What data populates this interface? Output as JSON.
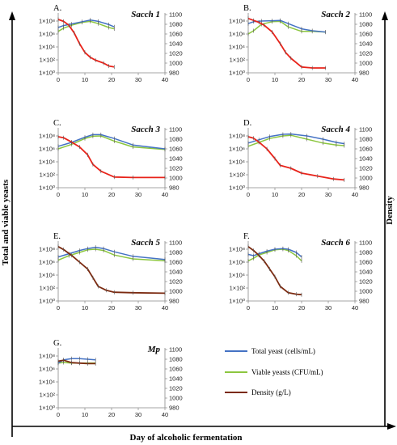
{
  "figure": {
    "y_axis_label": "Total and viable yeasts",
    "x_axis_label": "Day of alcoholic fermentation",
    "right_axis_label": "Density"
  },
  "legend": [
    {
      "label": "Total yeast (cells/mL)",
      "color": "#4472C4"
    },
    {
      "label": "Viable yeasts (CFU/mL)",
      "color": "#8CC63F"
    },
    {
      "label": "Density (g/L)",
      "color": "#7B2A10"
    }
  ],
  "colors": {
    "total": "#4472C4",
    "viable": "#8CC63F",
    "density_red": "#E8231A",
    "density_brown": "#7B2A10",
    "axis": "#888888"
  },
  "left_tick_labels": [
    "1×10⁰",
    "1×10²",
    "1×10⁴",
    "1×10⁶",
    "1×10⁸"
  ],
  "right_tick_labels": [
    "980",
    "1000",
    "1020",
    "1040",
    "1060",
    "1080",
    "1100"
  ],
  "x_tick_labels": [
    "0",
    "10",
    "20",
    "30",
    "40"
  ],
  "chart_data": [
    {
      "type": "line",
      "letter": "A.",
      "title": "Sacch 1",
      "xlim": [
        0,
        40
      ],
      "ylim_left_log10": [
        0,
        9
      ],
      "ylim_right": [
        980,
        1100
      ],
      "density_color": "red",
      "series": [
        {
          "name": "Total yeast (cells/mL)",
          "axis": "left",
          "x": [
            0,
            2,
            5,
            9,
            12,
            15,
            19,
            21
          ],
          "log10_values": [
            7.0,
            7.3,
            7.55,
            7.9,
            8.15,
            7.95,
            7.45,
            7.1
          ]
        },
        {
          "name": "Viable yeasts (CFU/mL)",
          "axis": "left",
          "x": [
            0,
            2,
            5,
            9,
            12,
            15,
            19,
            21
          ],
          "log10_values": [
            6.4,
            6.9,
            7.35,
            7.8,
            7.95,
            7.6,
            7.0,
            6.8
          ]
        },
        {
          "name": "Density (g/L)",
          "axis": "right",
          "x": [
            0,
            2,
            4,
            6,
            8,
            10,
            12,
            14,
            17,
            19,
            21
          ],
          "values": [
            1090,
            1086,
            1078,
            1062,
            1040,
            1022,
            1012,
            1006,
            1000,
            994,
            992
          ]
        }
      ]
    },
    {
      "type": "line",
      "letter": "B.",
      "title": "Sacch 2",
      "xlim": [
        0,
        40
      ],
      "ylim_left_log10": [
        0,
        9
      ],
      "ylim_right": [
        980,
        1100
      ],
      "density_color": "red",
      "series": [
        {
          "name": "Total yeast (cells/mL)",
          "axis": "left",
          "x": [
            0,
            2,
            5,
            9,
            12,
            15,
            20,
            24,
            29
          ],
          "log10_values": [
            7.6,
            7.9,
            8.0,
            8.05,
            8.1,
            7.6,
            6.8,
            6.5,
            6.3
          ]
        },
        {
          "name": "Viable yeasts (CFU/mL)",
          "axis": "left",
          "x": [
            0,
            2,
            5,
            9,
            12,
            15,
            20,
            24,
            29
          ],
          "log10_values": [
            6.0,
            6.5,
            7.5,
            7.9,
            7.95,
            7.1,
            6.4,
            6.4,
            6.3
          ]
        },
        {
          "name": "Density (g/L)",
          "axis": "right",
          "x": [
            0,
            2,
            4,
            6,
            9,
            12,
            14,
            16,
            20,
            24,
            29
          ],
          "values": [
            1092,
            1088,
            1084,
            1078,
            1064,
            1040,
            1022,
            1010,
            992,
            990,
            990
          ]
        }
      ]
    },
    {
      "type": "line",
      "letter": "C.",
      "title": "Sacch 3",
      "xlim": [
        0,
        40
      ],
      "ylim_left_log10": [
        0,
        9
      ],
      "ylim_right": [
        980,
        1100
      ],
      "density_color": "red",
      "series": [
        {
          "name": "Total yeast (cells/mL)",
          "axis": "left",
          "x": [
            0,
            5,
            10,
            13,
            16,
            21,
            28,
            40
          ],
          "log10_values": [
            6.4,
            7.0,
            7.8,
            8.2,
            8.2,
            7.6,
            6.6,
            6.0
          ]
        },
        {
          "name": "Viable yeasts (CFU/mL)",
          "axis": "left",
          "x": [
            0,
            5,
            10,
            13,
            16,
            21,
            28,
            40
          ],
          "log10_values": [
            6.0,
            6.7,
            7.6,
            7.95,
            8.0,
            7.2,
            6.3,
            5.9
          ]
        },
        {
          "name": "Density (g/L)",
          "axis": "right",
          "x": [
            0,
            2,
            5,
            8,
            11,
            13,
            16,
            21,
            28,
            40
          ],
          "values": [
            1085,
            1083,
            1074,
            1064,
            1048,
            1028,
            1014,
            1002,
            1001,
            1001
          ]
        }
      ]
    },
    {
      "type": "line",
      "letter": "D.",
      "title": "Sacch 4",
      "xlim": [
        0,
        40
      ],
      "ylim_left_log10": [
        0,
        9
      ],
      "ylim_right": [
        980,
        1100
      ],
      "density_color": "red",
      "series": [
        {
          "name": "Total yeast (cells/mL)",
          "axis": "left",
          "x": [
            0,
            4,
            8,
            13,
            16,
            22,
            28,
            33,
            36
          ],
          "log10_values": [
            6.9,
            7.4,
            7.9,
            8.25,
            8.3,
            8.0,
            7.5,
            7.0,
            6.8
          ]
        },
        {
          "name": "Viable yeasts (CFU/mL)",
          "axis": "left",
          "x": [
            0,
            4,
            8,
            13,
            16,
            22,
            28,
            33,
            36
          ],
          "log10_values": [
            6.4,
            7.0,
            7.6,
            8.0,
            8.1,
            7.5,
            6.9,
            6.6,
            6.5
          ]
        },
        {
          "name": "Density (g/L)",
          "axis": "right",
          "x": [
            0,
            2,
            4,
            7,
            10,
            12,
            16,
            20,
            26,
            32,
            36
          ],
          "values": [
            1085,
            1082,
            1074,
            1060,
            1040,
            1026,
            1020,
            1010,
            1004,
            998,
            996
          ]
        }
      ]
    },
    {
      "type": "line",
      "letter": "E.",
      "title": "Sacch 5",
      "xlim": [
        0,
        40
      ],
      "ylim_left_log10": [
        0,
        9
      ],
      "ylim_right": [
        980,
        1100
      ],
      "density_color": "brown",
      "series": [
        {
          "name": "Total yeast (cells/mL)",
          "axis": "left",
          "x": [
            0,
            4,
            8,
            11,
            14,
            17,
            21,
            28,
            40
          ],
          "log10_values": [
            6.8,
            7.3,
            7.8,
            8.1,
            8.3,
            8.1,
            7.6,
            6.9,
            6.4
          ]
        },
        {
          "name": "Viable yeasts (CFU/mL)",
          "axis": "left",
          "x": [
            0,
            4,
            8,
            11,
            14,
            17,
            21,
            28,
            40
          ],
          "log10_values": [
            6.3,
            7.0,
            7.5,
            7.9,
            8.0,
            7.8,
            7.1,
            6.5,
            6.2
          ]
        },
        {
          "name": "Density (g/L)",
          "axis": "right",
          "x": [
            0,
            2,
            5,
            8,
            11,
            13,
            15,
            18,
            21,
            28,
            40
          ],
          "values": [
            1092,
            1086,
            1074,
            1060,
            1046,
            1028,
            1010,
            1002,
            998,
            997,
            996
          ]
        }
      ]
    },
    {
      "type": "line",
      "letter": "F.",
      "title": "Sacch 6",
      "xlim": [
        0,
        40
      ],
      "ylim_left_log10": [
        0,
        9
      ],
      "ylim_right": [
        980,
        1100
      ],
      "density_color": "brown",
      "series": [
        {
          "name": "Total yeast (cells/mL)",
          "axis": "left",
          "x": [
            0,
            2,
            4,
            7,
            10,
            13,
            15,
            18,
            20
          ],
          "log10_values": [
            7.2,
            7.0,
            7.3,
            7.7,
            8.0,
            8.1,
            8.0,
            7.5,
            6.8
          ]
        },
        {
          "name": "Viable yeasts (CFU/mL)",
          "axis": "left",
          "x": [
            0,
            2,
            4,
            7,
            10,
            13,
            15,
            18,
            20
          ],
          "log10_values": [
            6.2,
            6.6,
            7.1,
            7.5,
            7.9,
            8.0,
            7.8,
            7.0,
            6.2
          ]
        },
        {
          "name": "Density (g/L)",
          "axis": "right",
          "x": [
            0,
            2,
            4,
            6,
            8,
            10,
            12,
            15,
            18,
            20
          ],
          "values": [
            1092,
            1084,
            1074,
            1062,
            1046,
            1030,
            1010,
            997,
            994,
            993
          ]
        }
      ]
    },
    {
      "type": "line",
      "letter": "G.",
      "title": "Mp",
      "xlim": [
        0,
        40
      ],
      "ylim_left_log10": [
        0,
        9
      ],
      "ylim_right": [
        980,
        1100
      ],
      "density_color": "brown",
      "series": [
        {
          "name": "Total yeast (cells/mL)",
          "axis": "left",
          "x": [
            0,
            2,
            5,
            8,
            11,
            14
          ],
          "log10_values": [
            6.9,
            7.4,
            7.6,
            7.6,
            7.5,
            7.4
          ]
        },
        {
          "name": "Viable yeasts (CFU/mL)",
          "axis": "left",
          "x": [
            0,
            2,
            5,
            8,
            11,
            14
          ],
          "log10_values": [
            6.9,
            7.0,
            6.9,
            6.9,
            6.9,
            6.9
          ]
        },
        {
          "name": "Density (g/L)",
          "axis": "right",
          "x": [
            0,
            2,
            5,
            8,
            11,
            14
          ],
          "values": [
            1076,
            1078,
            1073,
            1072,
            1071,
            1071
          ]
        }
      ]
    }
  ]
}
